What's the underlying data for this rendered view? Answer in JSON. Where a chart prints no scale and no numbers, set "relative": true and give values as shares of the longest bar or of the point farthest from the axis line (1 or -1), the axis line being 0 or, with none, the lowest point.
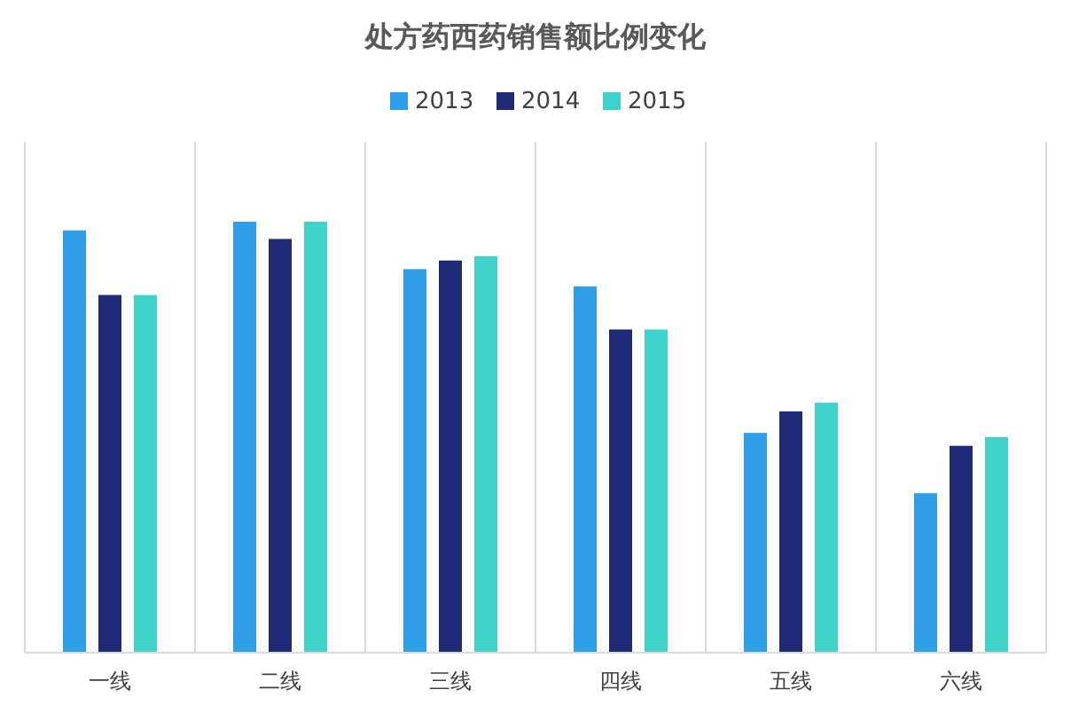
{
  "chart_data": {
    "type": "bar",
    "title": "处方药西药销售额比例变化",
    "relative": true,
    "grid": "x",
    "legend": "top",
    "categories": [
      "一线",
      "二线",
      "三线",
      "四线",
      "五线",
      "六线"
    ],
    "series": [
      {
        "name": "2013",
        "color": "#2e9fe8",
        "values": [
          0.98,
          1,
          0.89,
          0.85,
          0.51,
          0.37
        ]
      },
      {
        "name": "2014",
        "color": "#1f2a78",
        "values": [
          0.83,
          0.96,
          0.91,
          0.75,
          0.56,
          0.48
        ]
      },
      {
        "name": "2015",
        "color": "#3fd3cc",
        "values": [
          0.83,
          1,
          0.92,
          0.75,
          0.58,
          0.5
        ]
      }
    ]
  }
}
